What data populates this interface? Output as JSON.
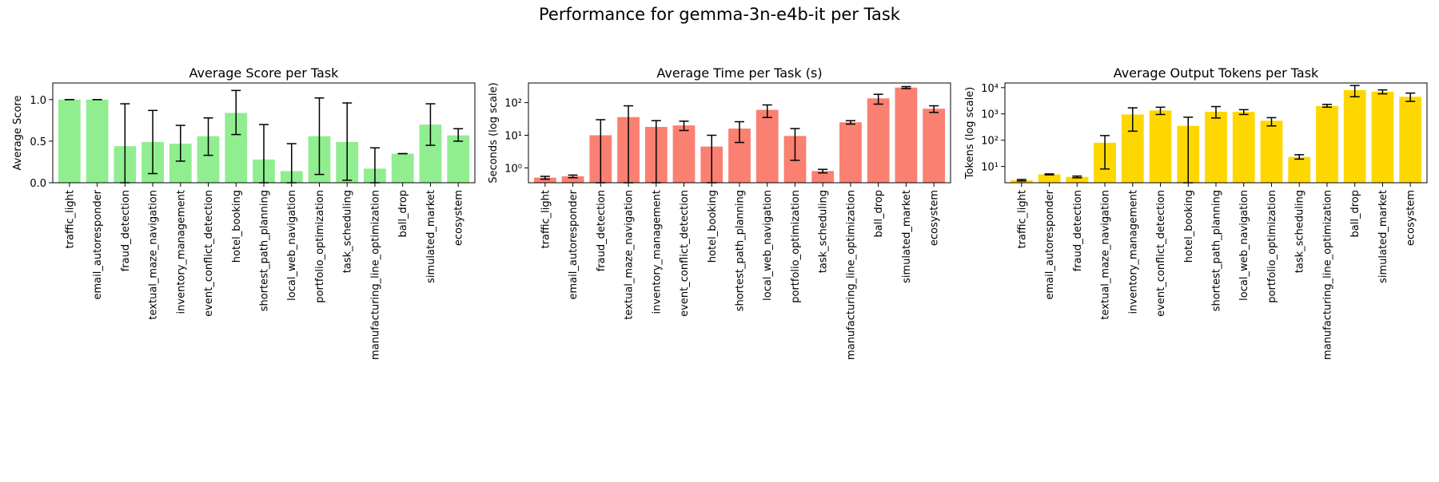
{
  "figure": {
    "title": "Performance for gemma-3n-e4b-it per Task"
  },
  "chart_data": [
    {
      "type": "bar",
      "title": "Average Score per Task",
      "xlabel": "",
      "ylabel": "Average Score",
      "yscale": "linear",
      "ylim": [
        0,
        1.2
      ],
      "yticks": [
        0.0,
        0.5,
        1.0
      ],
      "ytick_labels": [
        "0.0",
        "0.5",
        "1.0"
      ],
      "color": "#90ee90",
      "grid": false,
      "categories": [
        "traffic_light",
        "email_autoresponder",
        "fraud_detection",
        "textual_maze_navigation",
        "inventory_management",
        "event_conflict_detection",
        "hotel_booking",
        "shortest_path_planning",
        "local_web_navigation",
        "portfolio_optimization",
        "task_scheduling",
        "manufacturing_line_optimization",
        "ball_drop",
        "simulated_market",
        "ecosystem"
      ],
      "values": [
        1.0,
        1.0,
        0.44,
        0.49,
        0.47,
        0.56,
        0.84,
        0.28,
        0.14,
        0.56,
        0.49,
        0.17,
        0.35,
        0.7,
        0.57
      ],
      "err_low": [
        0.0,
        0.0,
        0.44,
        0.38,
        0.21,
        0.23,
        0.26,
        0.28,
        0.14,
        0.46,
        0.46,
        0.17,
        0.0,
        0.25,
        0.07
      ],
      "err_high": [
        0.0,
        0.0,
        0.51,
        0.38,
        0.22,
        0.22,
        0.27,
        0.42,
        0.33,
        0.46,
        0.47,
        0.25,
        0.0,
        0.25,
        0.08
      ]
    },
    {
      "type": "bar",
      "title": "Average Time per Task (s)",
      "xlabel": "",
      "ylabel": "Seconds (log scale)",
      "yscale": "log",
      "ylim": [
        0.35,
        400
      ],
      "yticks": [
        1,
        10,
        100
      ],
      "ytick_labels": [
        "10⁰",
        "10¹",
        "10²"
      ],
      "color": "#fa8072",
      "grid": false,
      "categories": [
        "traffic_light",
        "email_autoresponder",
        "fraud_detection",
        "textual_maze_navigation",
        "inventory_management",
        "event_conflict_detection",
        "hotel_booking",
        "shortest_path_planning",
        "local_web_navigation",
        "portfolio_optimization",
        "task_scheduling",
        "manufacturing_line_optimization",
        "ball_drop",
        "simulated_market",
        "ecosystem"
      ],
      "values": [
        0.5,
        0.55,
        10,
        36,
        18,
        20,
        4.5,
        16,
        60,
        9.5,
        0.8,
        25,
        135,
        290,
        65
      ],
      "lower": [
        0.45,
        0.5,
        0.35,
        0.35,
        0.35,
        14,
        0.35,
        6,
        35,
        1.7,
        0.7,
        22,
        90,
        270,
        50
      ],
      "upper": [
        0.55,
        0.6,
        30,
        80,
        28,
        27,
        10,
        26,
        85,
        16,
        0.9,
        28,
        180,
        310,
        80
      ]
    },
    {
      "type": "bar",
      "title": "Average Output Tokens per Task",
      "xlabel": "",
      "ylabel": "Tokens (log scale)",
      "yscale": "log",
      "ylim": [
        2.4,
        15000
      ],
      "yticks": [
        10,
        100,
        1000,
        10000
      ],
      "ytick_labels": [
        "10¹",
        "10²",
        "10³",
        "10⁴"
      ],
      "color": "#ffd700",
      "grid": false,
      "categories": [
        "traffic_light",
        "email_autoresponder",
        "fraud_detection",
        "textual_maze_navigation",
        "inventory_management",
        "event_conflict_detection",
        "hotel_booking",
        "shortest_path_planning",
        "local_web_navigation",
        "portfolio_optimization",
        "task_scheduling",
        "manufacturing_line_optimization",
        "ball_drop",
        "simulated_market",
        "ecosystem"
      ],
      "values": [
        3,
        5,
        4,
        80,
        950,
        1350,
        350,
        1200,
        1200,
        550,
        23,
        2000,
        8000,
        7000,
        4500
      ],
      "lower": [
        2.8,
        4.8,
        3.7,
        8,
        220,
        950,
        2.4,
        700,
        950,
        350,
        19,
        1800,
        4500,
        5800,
        3000
      ],
      "upper": [
        3.2,
        5.2,
        4.3,
        150,
        1700,
        1800,
        750,
        1900,
        1450,
        720,
        28,
        2300,
        12000,
        8200,
        6200
      ]
    }
  ]
}
